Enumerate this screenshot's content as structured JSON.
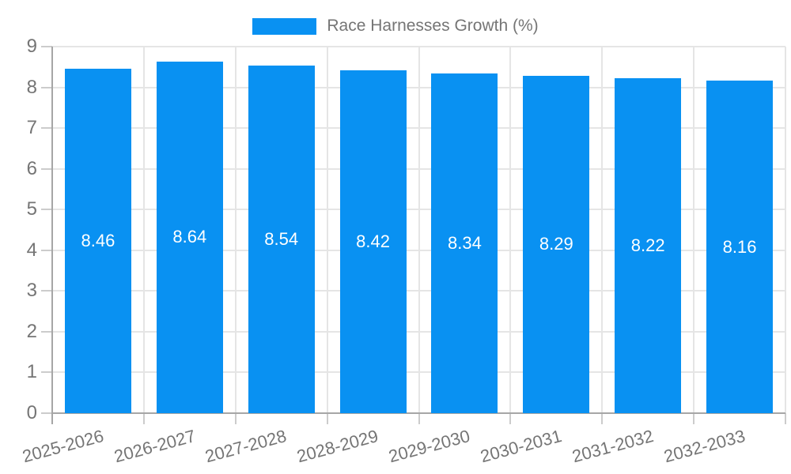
{
  "legend": {
    "label": "Race Harnesses Growth (%)"
  },
  "chart_data": {
    "type": "bar",
    "title": "Race Harnesses Growth (%)",
    "categories": [
      "2025-2026",
      "2026-2027",
      "2027-2028",
      "2028-2029",
      "2029-2030",
      "2030-2031",
      "2031-2032",
      "2032-2033"
    ],
    "values": [
      8.46,
      8.64,
      8.54,
      8.42,
      8.34,
      8.29,
      8.22,
      8.16
    ],
    "xlabel": "",
    "ylabel": "",
    "ylim": [
      0,
      9
    ],
    "yticks": [
      0,
      1,
      2,
      3,
      4,
      5,
      6,
      7,
      8,
      9
    ],
    "grid": true,
    "legend_position": "top",
    "value_labels": [
      "8.46",
      "8.64",
      "8.54",
      "8.42",
      "8.34",
      "8.29",
      "8.22",
      "8.16"
    ]
  },
  "colors": {
    "bar": "#0991f2",
    "grid": "#e5e5e5",
    "axis": "#a6a6a6",
    "tick": "#cccccc",
    "text": "#757575",
    "bar_label": "#ffffff",
    "background": "#ffffff"
  }
}
